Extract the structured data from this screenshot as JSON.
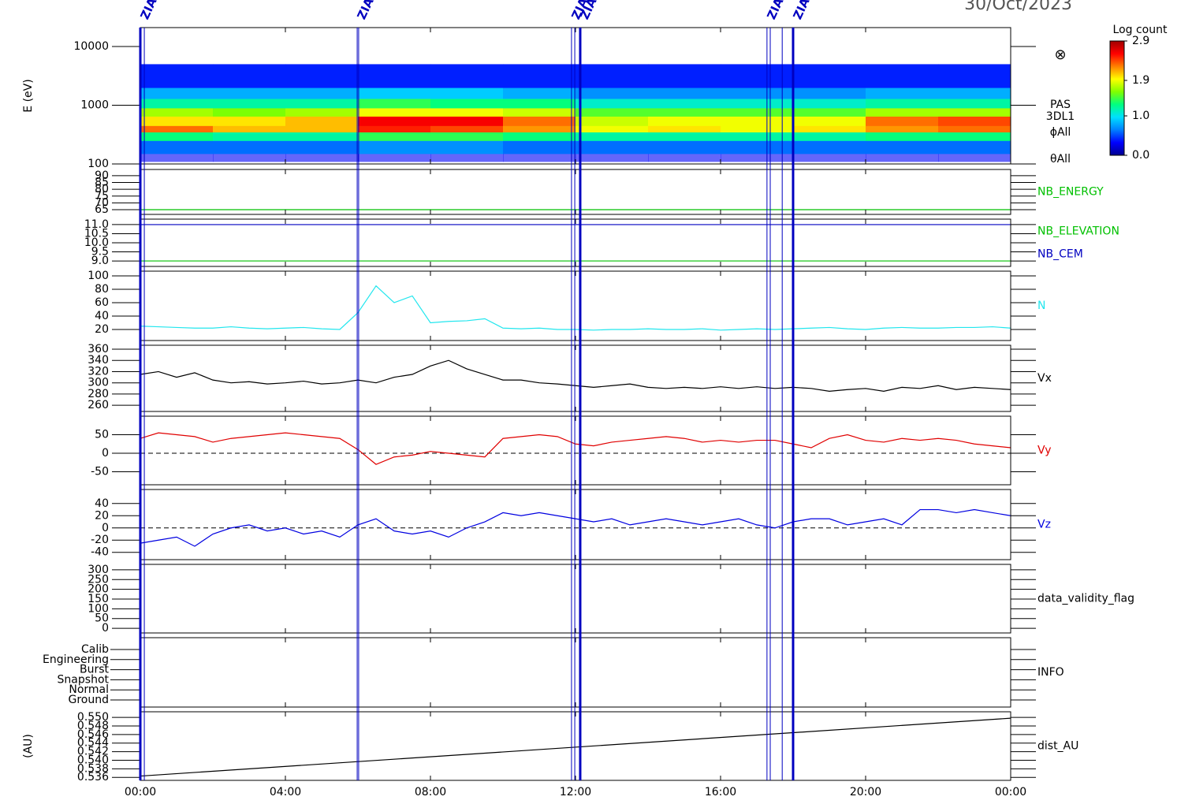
{
  "date_label": "30/Oct/2023",
  "time_axis": {
    "xlim": [
      0,
      24
    ],
    "xticks": [
      {
        "value": 0,
        "label": "00:00"
      },
      {
        "value": 4,
        "label": "04:00"
      },
      {
        "value": 8,
        "label": "08:00"
      },
      {
        "value": 12,
        "label": "12:00"
      },
      {
        "value": 16,
        "label": "16:00"
      },
      {
        "value": 20,
        "label": "20:00"
      },
      {
        "value": 24,
        "label": "00:00"
      }
    ]
  },
  "event_markers": {
    "color": "#0000c0",
    "items": [
      {
        "x": 0,
        "weight": "thick",
        "label": "ZIAS"
      },
      {
        "x": 0.11,
        "weight": "thin"
      },
      {
        "x": 5.98,
        "weight": "thin",
        "label": "ZIAS"
      },
      {
        "x": 6.02,
        "weight": "thin"
      },
      {
        "x": 11.89,
        "weight": "thin",
        "label": "ZIAS"
      },
      {
        "x": 11.98,
        "weight": "thin"
      },
      {
        "x": 12.13,
        "weight": "thick",
        "label": "ZIAS"
      },
      {
        "x": 17.28,
        "weight": "thin",
        "label": "ZIAS"
      },
      {
        "x": 17.37,
        "weight": "thin"
      },
      {
        "x": 17.7,
        "weight": "thin"
      },
      {
        "x": 18.0,
        "weight": "thick",
        "label": "ZIAS"
      }
    ]
  },
  "chart_data": [
    {
      "type": "spectrogram",
      "ylabel": "E (eV)",
      "log_y": true,
      "ylim": [
        100,
        21000
      ],
      "yticks": [
        100,
        1000,
        10000
      ],
      "x_edges": [
        0,
        2,
        4,
        6,
        8,
        10,
        12,
        14,
        16,
        18,
        20,
        22,
        24
      ],
      "y_edges": [
        110,
        150,
        250,
        350,
        450,
        650,
        900,
        1300,
        2000,
        5000
      ],
      "values": [
        [
          0.3,
          0.6,
          1.3,
          2.3,
          2.0,
          1.7,
          1.2,
          0.8,
          0.4
        ],
        [
          0.3,
          0.6,
          1.2,
          2.1,
          2.0,
          1.6,
          1.2,
          0.8,
          0.4
        ],
        [
          0.3,
          0.6,
          1.2,
          2.1,
          2.1,
          1.7,
          1.2,
          0.8,
          0.4
        ],
        [
          0.3,
          0.7,
          1.4,
          2.5,
          2.6,
          1.9,
          1.4,
          0.9,
          0.4
        ],
        [
          0.3,
          0.7,
          1.4,
          2.4,
          2.6,
          1.9,
          1.3,
          0.9,
          0.4
        ],
        [
          0.3,
          0.6,
          1.3,
          2.2,
          2.3,
          1.8,
          1.3,
          0.8,
          0.4
        ],
        [
          0.3,
          0.6,
          1.2,
          1.9,
          1.8,
          1.5,
          1.1,
          0.7,
          0.4
        ],
        [
          0.3,
          0.6,
          1.2,
          2.0,
          1.9,
          1.5,
          1.1,
          0.7,
          0.4
        ],
        [
          0.3,
          0.6,
          1.2,
          1.9,
          1.9,
          1.5,
          1.1,
          0.7,
          0.4
        ],
        [
          0.3,
          0.6,
          1.2,
          2.0,
          1.9,
          1.5,
          1.1,
          0.7,
          0.4
        ],
        [
          0.3,
          0.6,
          1.3,
          2.2,
          2.3,
          1.7,
          1.2,
          0.8,
          0.4
        ],
        [
          0.3,
          0.6,
          1.3,
          2.3,
          2.4,
          1.7,
          1.2,
          0.8,
          0.4
        ]
      ],
      "side_labels": [
        "PAS",
        "3DL1",
        "ϕAll",
        "θAll"
      ],
      "symbol": "⊗",
      "colorbar": {
        "title": "Log count",
        "clim": [
          0,
          2.9
        ],
        "ticks": [
          {
            "value": 0,
            "label": "0.0"
          },
          {
            "value": 1,
            "label": "1.0"
          },
          1.9,
          2.9
        ],
        "colormap": [
          "#000090",
          "#0000ff",
          "#0080ff",
          "#00e0ff",
          "#00ff80",
          "#80ff00",
          "#ffff00",
          "#ff8000",
          "#ff0000",
          "#a00000"
        ]
      }
    },
    {
      "type": "line",
      "ylim": [
        61.5,
        94.6
      ],
      "yticks": [
        65,
        70,
        75,
        80,
        85,
        90
      ],
      "series": [
        {
          "name": "NB_ENERGY",
          "color": "#00c000",
          "x": [
            0,
            24
          ],
          "values": [
            65,
            65
          ]
        }
      ]
    },
    {
      "type": "line",
      "ylim": [
        8.7,
        11.3
      ],
      "yticks": [
        {
          "value": 9,
          "label": "9.0"
        },
        9.5,
        {
          "value": 10,
          "label": "10.0"
        },
        10.5,
        {
          "value": 11,
          "label": "11.0"
        }
      ],
      "series": [
        {
          "name": "NB_ELEVATION",
          "color": "#00c000",
          "x": [
            0,
            24
          ],
          "values": [
            9,
            9
          ]
        },
        {
          "name": "NB_CEM",
          "color": "#0000c0",
          "x": [
            0,
            24
          ],
          "values": [
            11,
            11
          ]
        }
      ]
    },
    {
      "type": "line",
      "ylim": [
        3.5,
        107
      ],
      "yticks": [
        20,
        40,
        60,
        80,
        100
      ],
      "x": [
        0,
        0.5,
        1,
        1.5,
        2,
        2.5,
        3,
        3.5,
        4,
        4.5,
        5,
        5.5,
        6,
        6.5,
        7,
        7.5,
        8,
        8.5,
        9,
        9.5,
        10,
        10.5,
        11,
        11.5,
        12,
        12.5,
        13,
        13.5,
        14,
        14.5,
        15,
        15.5,
        16,
        16.5,
        17,
        17.5,
        18,
        18.5,
        19,
        19.5,
        20,
        20.5,
        21,
        21.5,
        22,
        22.5,
        23,
        23.5,
        24
      ],
      "series": [
        {
          "name": "N",
          "color": "#22e6ee",
          "values": [
            25,
            24,
            23,
            22,
            22,
            24,
            22,
            21,
            22,
            23,
            21,
            20,
            45,
            85,
            60,
            70,
            30,
            32,
            33,
            36,
            22,
            21,
            22,
            20,
            20,
            19,
            20,
            20,
            21,
            20,
            20,
            21,
            19,
            20,
            21,
            20,
            21,
            22,
            23,
            21,
            20,
            22,
            23,
            22,
            22,
            23,
            23,
            24,
            22
          ]
        }
      ]
    },
    {
      "type": "line",
      "ylim": [
        249,
        367
      ],
      "yticks": [
        260,
        280,
        300,
        320,
        340,
        360
      ],
      "x": [
        0,
        0.5,
        1,
        1.5,
        2,
        2.5,
        3,
        3.5,
        4,
        4.5,
        5,
        5.5,
        6,
        6.5,
        7,
        7.5,
        8,
        8.5,
        9,
        9.5,
        10,
        10.5,
        11,
        11.5,
        12,
        12.5,
        13,
        13.5,
        14,
        14.5,
        15,
        15.5,
        16,
        16.5,
        17,
        17.5,
        18,
        18.5,
        19,
        19.5,
        20,
        20.5,
        21,
        21.5,
        22,
        22.5,
        23,
        23.5,
        24
      ],
      "series": [
        {
          "name": "Vx",
          "color": "#000000",
          "values": [
            315,
            320,
            310,
            318,
            305,
            300,
            302,
            298,
            300,
            303,
            298,
            300,
            305,
            300,
            310,
            315,
            330,
            340,
            325,
            315,
            305,
            305,
            300,
            298,
            295,
            292,
            295,
            298,
            292,
            290,
            292,
            290,
            293,
            290,
            293,
            290,
            292,
            290,
            285,
            288,
            290,
            285,
            292,
            290,
            295,
            288,
            292,
            290,
            288
          ]
        }
      ]
    },
    {
      "type": "line",
      "ylim": [
        -85,
        100
      ],
      "yticks": [
        -50,
        0,
        50
      ],
      "zero_line": true,
      "x": [
        0,
        0.5,
        1,
        1.5,
        2,
        2.5,
        3,
        3.5,
        4,
        4.5,
        5,
        5.5,
        6,
        6.5,
        7,
        7.5,
        8,
        8.5,
        9,
        9.5,
        10,
        10.5,
        11,
        11.5,
        12,
        12.5,
        13,
        13.5,
        14,
        14.5,
        15,
        15.5,
        16,
        16.5,
        17,
        17.5,
        18,
        18.5,
        19,
        19.5,
        20,
        20.5,
        21,
        21.5,
        22,
        22.5,
        23,
        23.5,
        24
      ],
      "series": [
        {
          "name": "Vy",
          "color": "#e00000",
          "values": [
            40,
            55,
            50,
            45,
            30,
            40,
            45,
            50,
            55,
            50,
            45,
            40,
            10,
            -30,
            -10,
            -5,
            5,
            0,
            -5,
            -10,
            40,
            45,
            50,
            45,
            25,
            20,
            30,
            35,
            40,
            45,
            40,
            30,
            35,
            30,
            35,
            35,
            25,
            15,
            40,
            50,
            35,
            30,
            40,
            35,
            40,
            35,
            25,
            20,
            15
          ]
        }
      ]
    },
    {
      "type": "line",
      "ylim": [
        -52,
        63
      ],
      "yticks": [
        -40,
        -20,
        0,
        20,
        40
      ],
      "zero_line": true,
      "x": [
        0,
        0.5,
        1,
        1.5,
        2,
        2.5,
        3,
        3.5,
        4,
        4.5,
        5,
        5.5,
        6,
        6.5,
        7,
        7.5,
        8,
        8.5,
        9,
        9.5,
        10,
        10.5,
        11,
        11.5,
        12,
        12.5,
        13,
        13.5,
        14,
        14.5,
        15,
        15.5,
        16,
        16.5,
        17,
        17.5,
        18,
        18.5,
        19,
        19.5,
        20,
        20.5,
        21,
        21.5,
        22,
        22.5,
        23,
        23.5,
        24
      ],
      "series": [
        {
          "name": "Vz",
          "color": "#0000e0",
          "values": [
            -25,
            -20,
            -15,
            -30,
            -10,
            0,
            5,
            -5,
            0,
            -10,
            -5,
            -15,
            5,
            15,
            -5,
            -10,
            -5,
            -15,
            0,
            10,
            25,
            20,
            25,
            20,
            15,
            10,
            15,
            5,
            10,
            15,
            10,
            5,
            10,
            15,
            5,
            0,
            10,
            15,
            15,
            5,
            10,
            15,
            5,
            30,
            30,
            25,
            30,
            25,
            20
          ]
        }
      ]
    },
    {
      "type": "empty",
      "label": "data_validity_flag",
      "ylim": [
        -24,
        328
      ],
      "yticks": [
        0,
        50,
        100,
        150,
        200,
        250,
        300
      ]
    },
    {
      "type": "categorical",
      "label": "INFO",
      "categories": [
        "Calib",
        "Engineering",
        "Burst",
        "Snapshot",
        "Normal",
        "Ground"
      ]
    },
    {
      "type": "line",
      "ylabel": "(AU)",
      "ylim": [
        0.5353,
        0.5513
      ],
      "yticks": [
        0.536,
        0.538,
        {
          "value": 0.54,
          "label": "0.540"
        },
        0.542,
        0.544,
        0.546,
        0.548,
        {
          "value": 0.55,
          "label": "0.550"
        }
      ],
      "series": [
        {
          "name": "dist_AU",
          "color": "#000000",
          "x": [
            0,
            24
          ],
          "values": [
            0.5363,
            0.5498
          ]
        }
      ]
    }
  ]
}
